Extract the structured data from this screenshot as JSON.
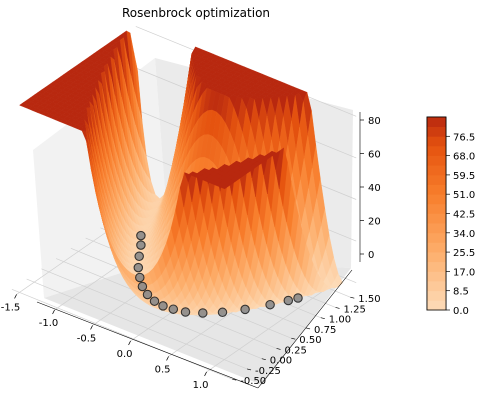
{
  "chart_data": {
    "type": "surface3d",
    "title": "Rosenbrock optimization",
    "function": "Rosenbrock",
    "colormap": "Oranges",
    "x_ticks": [
      "-1.5",
      "-1.0",
      "-0.5",
      "0.0",
      "0.5",
      "1.0"
    ],
    "y_ticks": [
      "-0.50",
      "-0.25",
      "0.00",
      "0.25",
      "0.50",
      "0.75",
      "1.00",
      "1.25",
      "1.50"
    ],
    "z_ticks": [
      "0",
      "20",
      "40",
      "60",
      "80"
    ],
    "xlim": [
      -1.6,
      1.3
    ],
    "ylim": [
      -0.55,
      1.6
    ],
    "zlim": [
      -5,
      88
    ],
    "colorbar": {
      "min": 0.0,
      "max": 85.0,
      "ticks": [
        "0.0",
        "8.5",
        "17.0",
        "25.5",
        "34.0",
        "42.5",
        "51.0",
        "59.5",
        "68.0",
        "76.5"
      ]
    },
    "optimization_path": [
      {
        "x": -0.95,
        "y": 0.85,
        "z": 3.9
      },
      {
        "x": -0.85,
        "y": 0.72,
        "z": 3.4
      },
      {
        "x": -0.74,
        "y": 0.55,
        "z": 3.0
      },
      {
        "x": -0.62,
        "y": 0.38,
        "z": 2.7
      },
      {
        "x": -0.5,
        "y": 0.25,
        "z": 2.3
      },
      {
        "x": -0.38,
        "y": 0.14,
        "z": 1.9
      },
      {
        "x": -0.25,
        "y": 0.06,
        "z": 1.6
      },
      {
        "x": -0.12,
        "y": 0.01,
        "z": 1.3
      },
      {
        "x": 0.0,
        "y": 0.0,
        "z": 1.0
      },
      {
        "x": 0.12,
        "y": 0.02,
        "z": 0.8
      },
      {
        "x": 0.25,
        "y": 0.06,
        "z": 0.6
      },
      {
        "x": 0.4,
        "y": 0.16,
        "z": 0.4
      },
      {
        "x": 0.55,
        "y": 0.3,
        "z": 0.2
      },
      {
        "x": 0.7,
        "y": 0.49,
        "z": 0.1
      },
      {
        "x": 0.85,
        "y": 0.72,
        "z": 0.05
      },
      {
        "x": 0.95,
        "y": 0.9,
        "z": 0.01
      },
      {
        "x": 1.0,
        "y": 1.0,
        "z": 0.0
      }
    ]
  }
}
